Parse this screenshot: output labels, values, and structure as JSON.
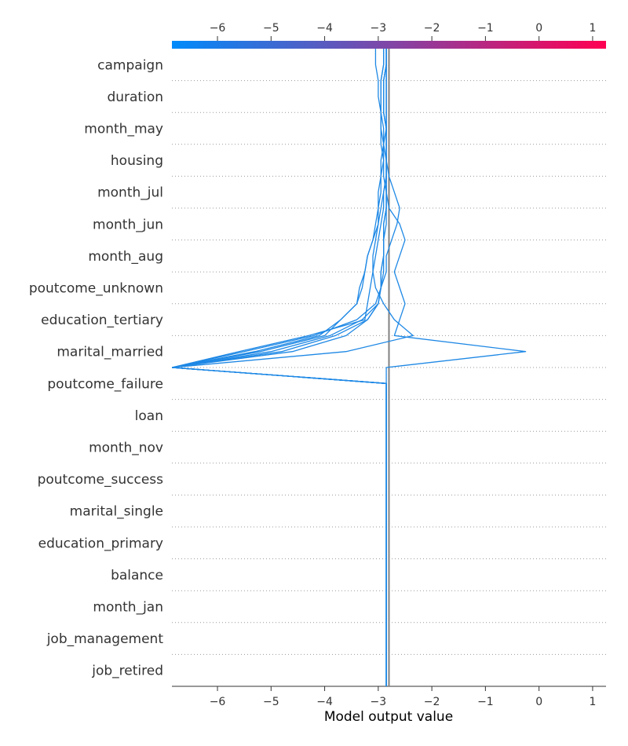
{
  "chart_data": {
    "type": "line",
    "xlabel": "Model output value",
    "xlim": [
      -6.85,
      1.25
    ],
    "x_ticks": [
      -6,
      -5,
      -4,
      -3,
      -2,
      -1,
      0,
      1
    ],
    "x_tick_labels": [
      "−6",
      "−5",
      "−4",
      "−3",
      "−2",
      "−1",
      "0",
      "1"
    ],
    "base_value": -2.8,
    "features": [
      "campaign",
      "duration",
      "month_may",
      "housing",
      "month_jul",
      "month_jun",
      "month_aug",
      "poutcome_unknown",
      "education_tertiary",
      "marital_married",
      "poutcome_failure",
      "loan",
      "month_nov",
      "poutcome_success",
      "marital_single",
      "education_primary",
      "balance",
      "month_jan",
      "job_management",
      "job_retired"
    ],
    "colorbar": {
      "min": -6.85,
      "max": 1.25,
      "low_color": "#008bfb",
      "high_color": "#ff0052"
    },
    "line_color": "#1e88e5",
    "grid": "dotted horizontal",
    "series": [
      {
        "values": [
          -2.85,
          -2.85,
          -2.85,
          -2.85,
          -2.85,
          -2.85,
          -2.85,
          -2.85,
          -2.85,
          -2.85,
          -2.85,
          -2.85,
          -2.85,
          -2.85,
          -2.85,
          -2.85,
          -2.85,
          -2.85,
          -2.85,
          -2.85,
          -2.85,
          -0.25,
          -2.7,
          -2.6,
          -2.5,
          -2.6,
          -2.7,
          -2.6,
          -2.5,
          -2.6,
          -2.8,
          -2.85,
          -2.9,
          -2.9,
          -2.95,
          -2.95,
          -2.95,
          -3.0,
          -3.0,
          -3.05,
          -3.05
        ]
      },
      {
        "values": [
          -2.85,
          -2.85,
          -2.85,
          -2.85,
          -2.85,
          -2.85,
          -2.85,
          -2.85,
          -2.85,
          -2.85,
          -2.85,
          -2.85,
          -2.85,
          -2.85,
          -2.85,
          -2.85,
          -2.85,
          -2.85,
          -2.85,
          -2.85,
          -6.85,
          -3.6,
          -2.35,
          -2.7,
          -2.9,
          -3.05,
          -3.1,
          -3.1,
          -3.05,
          -3.0,
          -3.0,
          -3.0,
          -2.95,
          -2.95,
          -2.9,
          -2.9,
          -2.95,
          -2.95,
          -2.95,
          -2.9,
          -2.9
        ]
      },
      {
        "values": [
          -2.85,
          -2.85,
          -2.85,
          -2.85,
          -2.85,
          -2.85,
          -2.85,
          -2.85,
          -2.85,
          -2.85,
          -2.85,
          -2.85,
          -2.85,
          -2.85,
          -2.85,
          -2.85,
          -2.85,
          -2.85,
          -2.85,
          -2.85,
          -6.85,
          -5.3,
          -4.1,
          -3.7,
          -3.4,
          -3.35,
          -3.25,
          -3.2,
          -3.1,
          -3.05,
          -3.0,
          -2.95,
          -2.95,
          -2.9,
          -2.9,
          -2.85,
          -2.85,
          -2.85,
          -2.85,
          -2.85,
          -2.85
        ]
      },
      {
        "values": [
          -2.85,
          -2.85,
          -2.85,
          -2.85,
          -2.85,
          -2.85,
          -2.85,
          -2.85,
          -2.85,
          -2.85,
          -2.85,
          -2.85,
          -2.85,
          -2.85,
          -2.85,
          -2.85,
          -2.85,
          -2.85,
          -2.85,
          -2.85,
          -6.85,
          -5.2,
          -4.0,
          -3.7,
          -3.4,
          -3.3,
          -3.25,
          -3.2,
          -3.1,
          -3.0,
          -2.95,
          -2.9,
          -2.85,
          -2.85,
          -2.85,
          -2.85,
          -2.85,
          -2.85,
          -2.85,
          -2.85,
          -2.85
        ]
      },
      {
        "values": [
          -2.85,
          -2.85,
          -2.85,
          -2.85,
          -2.85,
          -2.85,
          -2.85,
          -2.85,
          -2.85,
          -2.85,
          -2.85,
          -2.85,
          -2.85,
          -2.85,
          -2.85,
          -2.85,
          -2.85,
          -2.85,
          -2.85,
          -2.85,
          -6.85,
          -5.0,
          -3.9,
          -3.3,
          -3.0,
          -2.95,
          -2.95,
          -2.9,
          -2.9,
          -2.9,
          -2.85,
          -2.85,
          -2.85,
          -2.85,
          -2.85,
          -2.85,
          -2.9,
          -2.9,
          -2.9,
          -2.85,
          -2.85
        ]
      },
      {
        "values": [
          -2.85,
          -2.85,
          -2.85,
          -2.85,
          -2.85,
          -2.85,
          -2.85,
          -2.85,
          -2.85,
          -2.85,
          -2.85,
          -2.85,
          -2.85,
          -2.85,
          -2.85,
          -2.85,
          -2.85,
          -2.85,
          -2.85,
          -2.85,
          -6.85,
          -5.5,
          -4.2,
          -3.4,
          -3.05,
          -2.95,
          -2.85,
          -2.85,
          -2.75,
          -2.65,
          -2.6,
          -2.7,
          -2.8,
          -2.85,
          -2.9,
          -2.95,
          -2.95,
          -2.95,
          -2.95,
          -2.9,
          -2.9
        ]
      },
      {
        "values": [
          -2.85,
          -2.85,
          -2.85,
          -2.85,
          -2.85,
          -2.85,
          -2.85,
          -2.85,
          -2.85,
          -2.85,
          -2.85,
          -2.85,
          -2.85,
          -2.85,
          -2.85,
          -2.85,
          -2.85,
          -2.85,
          -2.85,
          -2.85,
          -6.85,
          -4.8,
          -3.8,
          -3.2,
          -3.0,
          -2.95,
          -2.95,
          -2.9,
          -2.9,
          -2.9,
          -2.85,
          -2.85,
          -2.85,
          -2.85,
          -2.85,
          -2.85,
          -2.9,
          -2.9,
          -2.9,
          -2.85,
          -2.85
        ]
      },
      {
        "values": [
          -2.85,
          -2.85,
          -2.85,
          -2.85,
          -2.85,
          -2.85,
          -2.85,
          -2.85,
          -2.85,
          -2.85,
          -2.85,
          -2.85,
          -2.85,
          -2.85,
          -2.85,
          -2.85,
          -2.85,
          -2.85,
          -2.85,
          -2.85,
          -6.85,
          -5.6,
          -4.3,
          -3.25,
          -3.2,
          -3.15,
          -3.1,
          -3.05,
          -3.0,
          -2.95,
          -2.9,
          -2.9,
          -2.85,
          -2.85,
          -2.85,
          -2.85,
          -2.85,
          -2.85,
          -2.85,
          -2.85,
          -2.85
        ]
      },
      {
        "values": [
          -2.85,
          -2.85,
          -2.85,
          -2.85,
          -2.85,
          -2.85,
          -2.85,
          -2.85,
          -2.85,
          -2.85,
          -2.85,
          -2.85,
          -2.85,
          -2.85,
          -2.85,
          -2.85,
          -2.85,
          -2.85,
          -2.85,
          -2.85,
          -6.85,
          -4.6,
          -3.6,
          -3.2,
          -3.0,
          -2.95,
          -2.9,
          -2.9,
          -2.9,
          -2.85,
          -2.85,
          -2.85,
          -2.85,
          -2.85,
          -2.85,
          -2.85,
          -2.9,
          -2.9,
          -2.9,
          -2.85,
          -2.85
        ]
      }
    ]
  }
}
